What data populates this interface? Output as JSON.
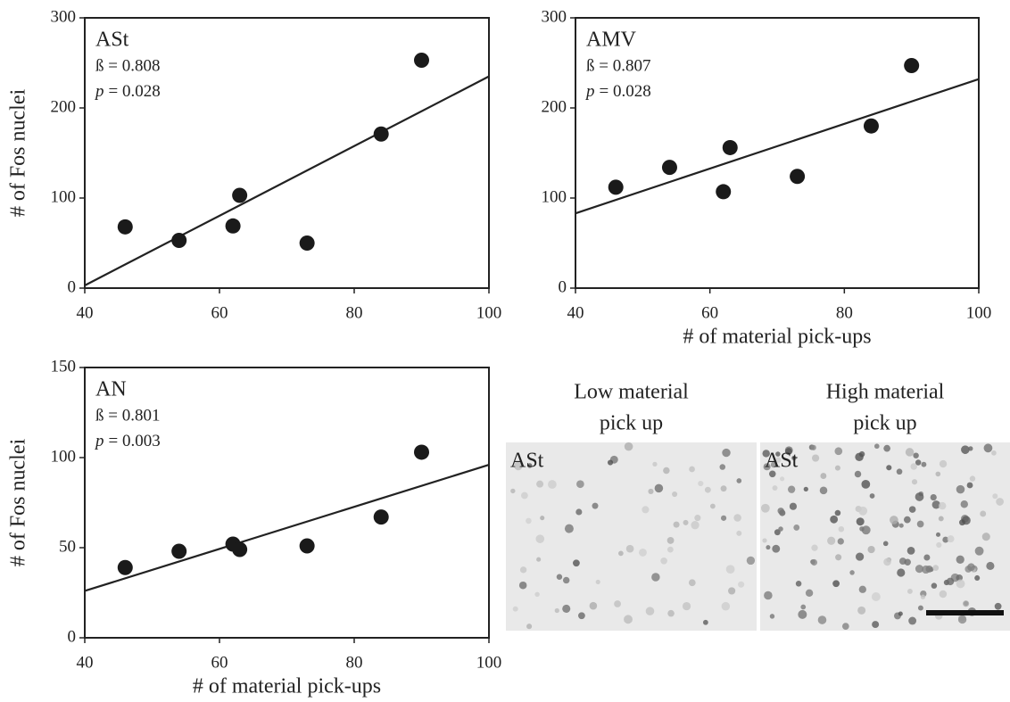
{
  "chart_data": [
    {
      "type": "scatter",
      "ylabel": "# of Fos nuclei",
      "annotations": [
        "ASt",
        "ß = 0.808"
      ],
      "p_annotation": [
        "p",
        "= 0.028"
      ],
      "x": [
        46,
        54,
        62,
        63,
        73,
        84,
        90
      ],
      "values": [
        68,
        53,
        69,
        103,
        50,
        171,
        253
      ],
      "color": "#1a1a1a",
      "trend": {
        "x": [
          40,
          100
        ],
        "values": [
          3,
          235
        ]
      },
      "xlim": [
        40,
        100
      ],
      "xticks": [
        40,
        60,
        80,
        100
      ],
      "ylim": [
        0,
        300
      ],
      "yticks": [
        0,
        100,
        200,
        300
      ]
    },
    {
      "type": "scatter",
      "xlabel": "# of material pick-ups",
      "annotations": [
        "AMV",
        "ß = 0.807"
      ],
      "p_annotation": [
        "p",
        "= 0.028"
      ],
      "x": [
        46,
        54,
        62,
        63,
        73,
        84,
        90
      ],
      "values": [
        112,
        134,
        107,
        156,
        124,
        180,
        247
      ],
      "color": "#1a1a1a",
      "trend": {
        "x": [
          40,
          100
        ],
        "values": [
          83,
          232
        ]
      },
      "xlim": [
        40,
        100
      ],
      "xticks": [
        40,
        60,
        80,
        100
      ],
      "ylim": [
        0,
        300
      ],
      "yticks": [
        0,
        100,
        200,
        300
      ]
    },
    {
      "type": "scatter",
      "xlabel": "# of material pick-ups",
      "ylabel": "# of Fos nuclei",
      "annotations": [
        "AN",
        "ß = 0.801"
      ],
      "p_annotation": [
        "p",
        "= 0.003"
      ],
      "x": [
        46,
        54,
        62,
        63,
        73,
        84,
        90
      ],
      "values": [
        39,
        48,
        52,
        49,
        51,
        67,
        103
      ],
      "color": "#1a1a1a",
      "trend": {
        "x": [
          40,
          100
        ],
        "values": [
          26,
          96
        ]
      },
      "xlim": [
        40,
        100
      ],
      "xticks": [
        40,
        60,
        80,
        100
      ],
      "ylim": [
        0,
        150
      ],
      "yticks": [
        0,
        50,
        100,
        150
      ]
    }
  ],
  "micrographs": [
    {
      "title": [
        "Low material",
        "pick up"
      ],
      "label": "ASt"
    },
    {
      "title": [
        "High material",
        "pick up"
      ],
      "label": "ASt"
    }
  ]
}
